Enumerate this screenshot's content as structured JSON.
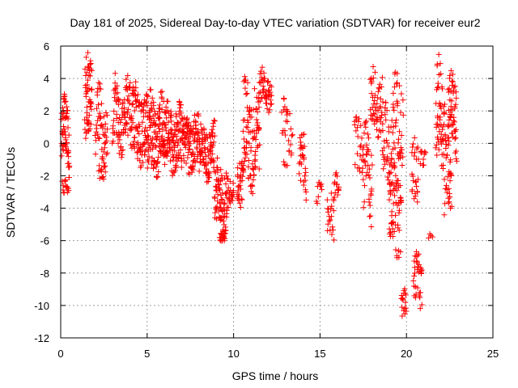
{
  "chart_data": {
    "type": "scatter",
    "title": "Day 181 of 2025, Sidereal Day-to-day VTEC variation (SDTVAR) for receiver eur2",
    "xlabel": "GPS time / hours",
    "ylabel": "SDTVAR / TECUs",
    "xlim": [
      0,
      25
    ],
    "ylim": [
      -12,
      6
    ],
    "xticks": [
      0,
      5,
      10,
      15,
      20,
      25
    ],
    "yticks": [
      -12,
      -10,
      -8,
      -6,
      -4,
      -2,
      0,
      2,
      4,
      6
    ],
    "grid": true,
    "marker": "plus",
    "color": "#ff0000",
    "segments": [
      {
        "t0": 0.05,
        "t1": 0.5,
        "center": 0.3,
        "spread": 1.8,
        "wiggle": 2.2,
        "n": 60
      },
      {
        "t0": 0.1,
        "t1": 0.45,
        "center": -2.8,
        "spread": 0.5,
        "wiggle": 0.4,
        "n": 15
      },
      {
        "t0": 1.4,
        "t1": 1.8,
        "center": 2.5,
        "spread": 2.5,
        "wiggle": 1.5,
        "n": 55
      },
      {
        "t0": 2.0,
        "t1": 2.7,
        "center": 1.2,
        "spread": 2.0,
        "wiggle": 1.5,
        "n": 50
      },
      {
        "t0": 2.2,
        "t1": 2.6,
        "center": -1.8,
        "spread": 0.6,
        "wiggle": 0.3,
        "n": 12
      },
      {
        "t0": 3.0,
        "t1": 4.1,
        "center": 1.5,
        "spread": 2.0,
        "wiggle": 1.8,
        "n": 90
      },
      {
        "t0": 4.1,
        "t1": 5.0,
        "center": 1.0,
        "spread": 2.2,
        "wiggle": 1.5,
        "n": 90
      },
      {
        "t0": 5.0,
        "t1": 6.0,
        "center": 0.5,
        "spread": 2.3,
        "wiggle": 1.5,
        "n": 120
      },
      {
        "t0": 6.0,
        "t1": 7.0,
        "center": 0.3,
        "spread": 1.8,
        "wiggle": 1.2,
        "n": 110
      },
      {
        "t0": 7.0,
        "t1": 8.0,
        "center": 0.0,
        "spread": 1.6,
        "wiggle": 1.0,
        "n": 110
      },
      {
        "t0": 8.0,
        "t1": 8.9,
        "center": -0.5,
        "spread": 1.5,
        "wiggle": 1.0,
        "n": 90
      },
      {
        "t0": 8.9,
        "t1": 9.6,
        "center": -3.5,
        "spread": 2.0,
        "wiggle": 1.2,
        "n": 80
      },
      {
        "t0": 9.2,
        "t1": 9.5,
        "center": -5.8,
        "spread": 0.5,
        "wiggle": 0.4,
        "n": 15
      },
      {
        "t0": 9.6,
        "t1": 10.0,
        "center": -3.5,
        "spread": 1.2,
        "wiggle": 0.8,
        "n": 25
      },
      {
        "t0": 10.2,
        "t1": 10.5,
        "center": -3.0,
        "spread": 1.5,
        "wiggle": 1.0,
        "n": 25
      },
      {
        "t0": 10.5,
        "t1": 11.5,
        "center": 0.5,
        "spread": 3.0,
        "wiggle": 2.5,
        "n": 100
      },
      {
        "t0": 11.5,
        "t1": 12.2,
        "center": 3.3,
        "spread": 1.0,
        "wiggle": 0.8,
        "n": 45
      },
      {
        "t0": 12.8,
        "t1": 13.4,
        "center": 1.0,
        "spread": 1.5,
        "wiggle": 1.0,
        "n": 25
      },
      {
        "t0": 12.9,
        "t1": 13.1,
        "center": -1.3,
        "spread": 0.2,
        "wiggle": 0.1,
        "n": 4
      },
      {
        "t0": 13.8,
        "t1": 14.2,
        "center": -1.5,
        "spread": 1.8,
        "wiggle": 1.0,
        "n": 30
      },
      {
        "t0": 14.8,
        "t1": 15.1,
        "center": -3.2,
        "spread": 0.6,
        "wiggle": 0.4,
        "n": 10
      },
      {
        "t0": 15.4,
        "t1": 15.8,
        "center": -4.5,
        "spread": 1.5,
        "wiggle": 0.8,
        "n": 20
      },
      {
        "t0": 15.8,
        "t1": 16.1,
        "center": -2.8,
        "spread": 0.8,
        "wiggle": 0.5,
        "n": 15
      },
      {
        "t0": 17.0,
        "t1": 17.5,
        "center": -0.5,
        "spread": 2.0,
        "wiggle": 1.5,
        "n": 25
      },
      {
        "t0": 17.5,
        "t1": 18.0,
        "center": -2.0,
        "spread": 2.5,
        "wiggle": 2.0,
        "n": 40
      },
      {
        "t0": 17.9,
        "t1": 18.6,
        "center": 2.5,
        "spread": 1.8,
        "wiggle": 1.2,
        "n": 50
      },
      {
        "t0": 18.6,
        "t1": 19.2,
        "center": 0.0,
        "spread": 2.5,
        "wiggle": 2.0,
        "n": 45
      },
      {
        "t0": 19.0,
        "t1": 19.7,
        "center": -4.0,
        "spread": 2.5,
        "wiggle": 1.5,
        "n": 60
      },
      {
        "t0": 19.2,
        "t1": 19.8,
        "center": 1.5,
        "spread": 2.5,
        "wiggle": 1.5,
        "n": 40
      },
      {
        "t0": 19.7,
        "t1": 20.0,
        "center": -10.0,
        "spread": 0.8,
        "wiggle": 0.5,
        "n": 18
      },
      {
        "t0": 20.3,
        "t1": 20.7,
        "center": -2.0,
        "spread": 2.0,
        "wiggle": 1.0,
        "n": 25
      },
      {
        "t0": 20.4,
        "t1": 20.9,
        "center": -8.5,
        "spread": 1.5,
        "wiggle": 1.0,
        "n": 35
      },
      {
        "t0": 20.8,
        "t1": 21.1,
        "center": -1.0,
        "spread": 0.5,
        "wiggle": 0.3,
        "n": 10
      },
      {
        "t0": 21.3,
        "t1": 21.5,
        "center": -5.8,
        "spread": 0.2,
        "wiggle": 0.1,
        "n": 4
      },
      {
        "t0": 21.7,
        "t1": 22.2,
        "center": 1.5,
        "spread": 3.0,
        "wiggle": 2.0,
        "n": 55
      },
      {
        "t0": 22.2,
        "t1": 22.6,
        "center": -2.0,
        "spread": 2.5,
        "wiggle": 1.5,
        "n": 35
      },
      {
        "t0": 22.4,
        "t1": 22.9,
        "center": 1.8,
        "spread": 2.2,
        "wiggle": 1.5,
        "n": 55
      }
    ]
  }
}
